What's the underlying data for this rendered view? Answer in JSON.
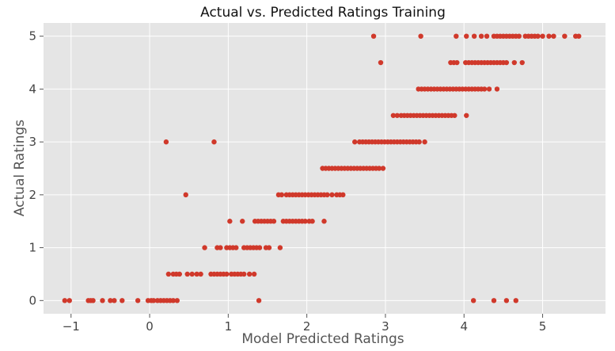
{
  "chart_data": {
    "type": "scatter",
    "title": "Actual vs. Predicted Ratings Training",
    "xlabel": "Model Predicted Ratings",
    "ylabel": "Actual Ratings",
    "xlim": [
      -1.35,
      5.8
    ],
    "ylim": [
      -0.25,
      5.25
    ],
    "x_ticks": [
      -1,
      0,
      1,
      2,
      3,
      4,
      5
    ],
    "y_ticks": [
      0,
      1,
      2,
      3,
      4,
      5
    ],
    "x_tick_labels": [
      "−1",
      "0",
      "1",
      "2",
      "3",
      "4",
      "5"
    ],
    "y_tick_labels": [
      "0",
      "1",
      "2",
      "3",
      "4",
      "5"
    ],
    "grid": true,
    "background": "#e5e5e5",
    "grid_color": "#ffffff",
    "point_color": "#d0392b",
    "series": [
      {
        "points": [
          [
            -1.08,
            0
          ],
          [
            -1.02,
            0
          ],
          [
            -0.78,
            0
          ],
          [
            -0.75,
            0
          ],
          [
            -0.72,
            0
          ],
          [
            -0.6,
            0
          ],
          [
            -0.5,
            0
          ],
          [
            -0.45,
            0
          ],
          [
            -0.35,
            0
          ],
          [
            -0.15,
            0
          ],
          [
            -0.02,
            0
          ],
          [
            0.02,
            0
          ],
          [
            0.05,
            0
          ],
          [
            0.1,
            0
          ],
          [
            0.14,
            0
          ],
          [
            0.18,
            0
          ],
          [
            0.22,
            0
          ],
          [
            0.26,
            0
          ],
          [
            0.3,
            0
          ],
          [
            0.35,
            0
          ],
          [
            1.39,
            0
          ],
          [
            4.12,
            0
          ],
          [
            4.38,
            0
          ],
          [
            4.54,
            0
          ],
          [
            4.66,
            0
          ],
          [
            0.24,
            0.5
          ],
          [
            0.3,
            0.5
          ],
          [
            0.34,
            0.5
          ],
          [
            0.38,
            0.5
          ],
          [
            0.48,
            0.5
          ],
          [
            0.54,
            0.5
          ],
          [
            0.6,
            0.5
          ],
          [
            0.65,
            0.5
          ],
          [
            0.78,
            0.5
          ],
          [
            0.82,
            0.5
          ],
          [
            0.86,
            0.5
          ],
          [
            0.9,
            0.5
          ],
          [
            0.94,
            0.5
          ],
          [
            0.98,
            0.5
          ],
          [
            1.04,
            0.5
          ],
          [
            1.08,
            0.5
          ],
          [
            1.12,
            0.5
          ],
          [
            1.16,
            0.5
          ],
          [
            1.2,
            0.5
          ],
          [
            1.27,
            0.5
          ],
          [
            1.33,
            0.5
          ],
          [
            0.7,
            1
          ],
          [
            0.86,
            1
          ],
          [
            0.9,
            1
          ],
          [
            0.98,
            1
          ],
          [
            1.02,
            1
          ],
          [
            1.06,
            1
          ],
          [
            1.1,
            1
          ],
          [
            1.2,
            1
          ],
          [
            1.24,
            1
          ],
          [
            1.28,
            1
          ],
          [
            1.32,
            1
          ],
          [
            1.36,
            1
          ],
          [
            1.4,
            1
          ],
          [
            1.48,
            1
          ],
          [
            1.52,
            1
          ],
          [
            1.66,
            1
          ],
          [
            1.02,
            1.5
          ],
          [
            1.18,
            1.5
          ],
          [
            1.34,
            1.5
          ],
          [
            1.38,
            1.5
          ],
          [
            1.42,
            1.5
          ],
          [
            1.46,
            1.5
          ],
          [
            1.5,
            1.5
          ],
          [
            1.54,
            1.5
          ],
          [
            1.58,
            1.5
          ],
          [
            1.7,
            1.5
          ],
          [
            1.74,
            1.5
          ],
          [
            1.78,
            1.5
          ],
          [
            1.82,
            1.5
          ],
          [
            1.86,
            1.5
          ],
          [
            1.9,
            1.5
          ],
          [
            1.94,
            1.5
          ],
          [
            1.98,
            1.5
          ],
          [
            2.03,
            1.5
          ],
          [
            2.07,
            1.5
          ],
          [
            2.22,
            1.5
          ],
          [
            1.64,
            2
          ],
          [
            1.68,
            2
          ],
          [
            1.74,
            2
          ],
          [
            1.78,
            2
          ],
          [
            1.82,
            2
          ],
          [
            1.86,
            2
          ],
          [
            1.9,
            2
          ],
          [
            1.94,
            2
          ],
          [
            1.98,
            2
          ],
          [
            2.02,
            2
          ],
          [
            2.06,
            2
          ],
          [
            2.1,
            2
          ],
          [
            2.14,
            2
          ],
          [
            2.18,
            2
          ],
          [
            2.22,
            2
          ],
          [
            2.26,
            2
          ],
          [
            2.32,
            2
          ],
          [
            2.38,
            2
          ],
          [
            2.42,
            2
          ],
          [
            2.46,
            2
          ],
          [
            2.2,
            2.5
          ],
          [
            2.24,
            2.5
          ],
          [
            2.28,
            2.5
          ],
          [
            2.32,
            2.5
          ],
          [
            2.36,
            2.5
          ],
          [
            2.4,
            2.5
          ],
          [
            2.44,
            2.5
          ],
          [
            2.48,
            2.5
          ],
          [
            2.52,
            2.5
          ],
          [
            2.56,
            2.5
          ],
          [
            2.6,
            2.5
          ],
          [
            2.64,
            2.5
          ],
          [
            2.68,
            2.5
          ],
          [
            2.72,
            2.5
          ],
          [
            2.76,
            2.5
          ],
          [
            2.8,
            2.5
          ],
          [
            2.84,
            2.5
          ],
          [
            2.88,
            2.5
          ],
          [
            2.92,
            2.5
          ],
          [
            2.97,
            2.5
          ],
          [
            0.21,
            3
          ],
          [
            0.82,
            3
          ],
          [
            2.61,
            3
          ],
          [
            2.67,
            3
          ],
          [
            2.71,
            3
          ],
          [
            2.75,
            3
          ],
          [
            2.79,
            3
          ],
          [
            2.83,
            3
          ],
          [
            2.87,
            3
          ],
          [
            2.91,
            3
          ],
          [
            2.95,
            3
          ],
          [
            2.99,
            3
          ],
          [
            3.03,
            3
          ],
          [
            3.07,
            3
          ],
          [
            3.11,
            3
          ],
          [
            3.15,
            3
          ],
          [
            3.19,
            3
          ],
          [
            3.23,
            3
          ],
          [
            3.27,
            3
          ],
          [
            3.31,
            3
          ],
          [
            3.35,
            3
          ],
          [
            3.39,
            3
          ],
          [
            3.43,
            3
          ],
          [
            3.5,
            3
          ],
          [
            0.46,
            2
          ],
          [
            3.1,
            3.5
          ],
          [
            3.15,
            3.5
          ],
          [
            3.2,
            3.5
          ],
          [
            3.24,
            3.5
          ],
          [
            3.28,
            3.5
          ],
          [
            3.32,
            3.5
          ],
          [
            3.36,
            3.5
          ],
          [
            3.4,
            3.5
          ],
          [
            3.44,
            3.5
          ],
          [
            3.48,
            3.5
          ],
          [
            3.52,
            3.5
          ],
          [
            3.56,
            3.5
          ],
          [
            3.6,
            3.5
          ],
          [
            3.64,
            3.5
          ],
          [
            3.68,
            3.5
          ],
          [
            3.72,
            3.5
          ],
          [
            3.76,
            3.5
          ],
          [
            3.8,
            3.5
          ],
          [
            3.84,
            3.5
          ],
          [
            3.88,
            3.5
          ],
          [
            4.03,
            3.5
          ],
          [
            3.42,
            4
          ],
          [
            3.46,
            4
          ],
          [
            3.5,
            4
          ],
          [
            3.54,
            4
          ],
          [
            3.58,
            4
          ],
          [
            3.62,
            4
          ],
          [
            3.66,
            4
          ],
          [
            3.7,
            4
          ],
          [
            3.74,
            4
          ],
          [
            3.78,
            4
          ],
          [
            3.82,
            4
          ],
          [
            3.86,
            4
          ],
          [
            3.9,
            4
          ],
          [
            3.94,
            4
          ],
          [
            3.98,
            4
          ],
          [
            4.02,
            4
          ],
          [
            4.06,
            4
          ],
          [
            4.1,
            4
          ],
          [
            4.14,
            4
          ],
          [
            4.18,
            4
          ],
          [
            4.22,
            4
          ],
          [
            4.26,
            4
          ],
          [
            4.32,
            4
          ],
          [
            4.42,
            4
          ],
          [
            2.94,
            4.5
          ],
          [
            3.83,
            4.5
          ],
          [
            3.87,
            4.5
          ],
          [
            3.91,
            4.5
          ],
          [
            4.02,
            4.5
          ],
          [
            4.06,
            4.5
          ],
          [
            4.1,
            4.5
          ],
          [
            4.14,
            4.5
          ],
          [
            4.18,
            4.5
          ],
          [
            4.22,
            4.5
          ],
          [
            4.26,
            4.5
          ],
          [
            4.3,
            4.5
          ],
          [
            4.34,
            4.5
          ],
          [
            4.38,
            4.5
          ],
          [
            4.42,
            4.5
          ],
          [
            4.46,
            4.5
          ],
          [
            4.5,
            4.5
          ],
          [
            4.54,
            4.5
          ],
          [
            4.64,
            4.5
          ],
          [
            4.74,
            4.5
          ],
          [
            2.85,
            5
          ],
          [
            3.45,
            5
          ],
          [
            3.9,
            5
          ],
          [
            4.03,
            5
          ],
          [
            4.13,
            5
          ],
          [
            4.22,
            5
          ],
          [
            4.29,
            5
          ],
          [
            4.38,
            5
          ],
          [
            4.42,
            5
          ],
          [
            4.46,
            5
          ],
          [
            4.5,
            5
          ],
          [
            4.54,
            5
          ],
          [
            4.58,
            5
          ],
          [
            4.62,
            5
          ],
          [
            4.66,
            5
          ],
          [
            4.7,
            5
          ],
          [
            4.78,
            5
          ],
          [
            4.82,
            5
          ],
          [
            4.86,
            5
          ],
          [
            4.9,
            5
          ],
          [
            4.94,
            5
          ],
          [
            5.0,
            5
          ],
          [
            5.08,
            5
          ],
          [
            5.14,
            5
          ],
          [
            5.28,
            5
          ],
          [
            5.42,
            5
          ],
          [
            5.46,
            5
          ]
        ]
      }
    ]
  }
}
